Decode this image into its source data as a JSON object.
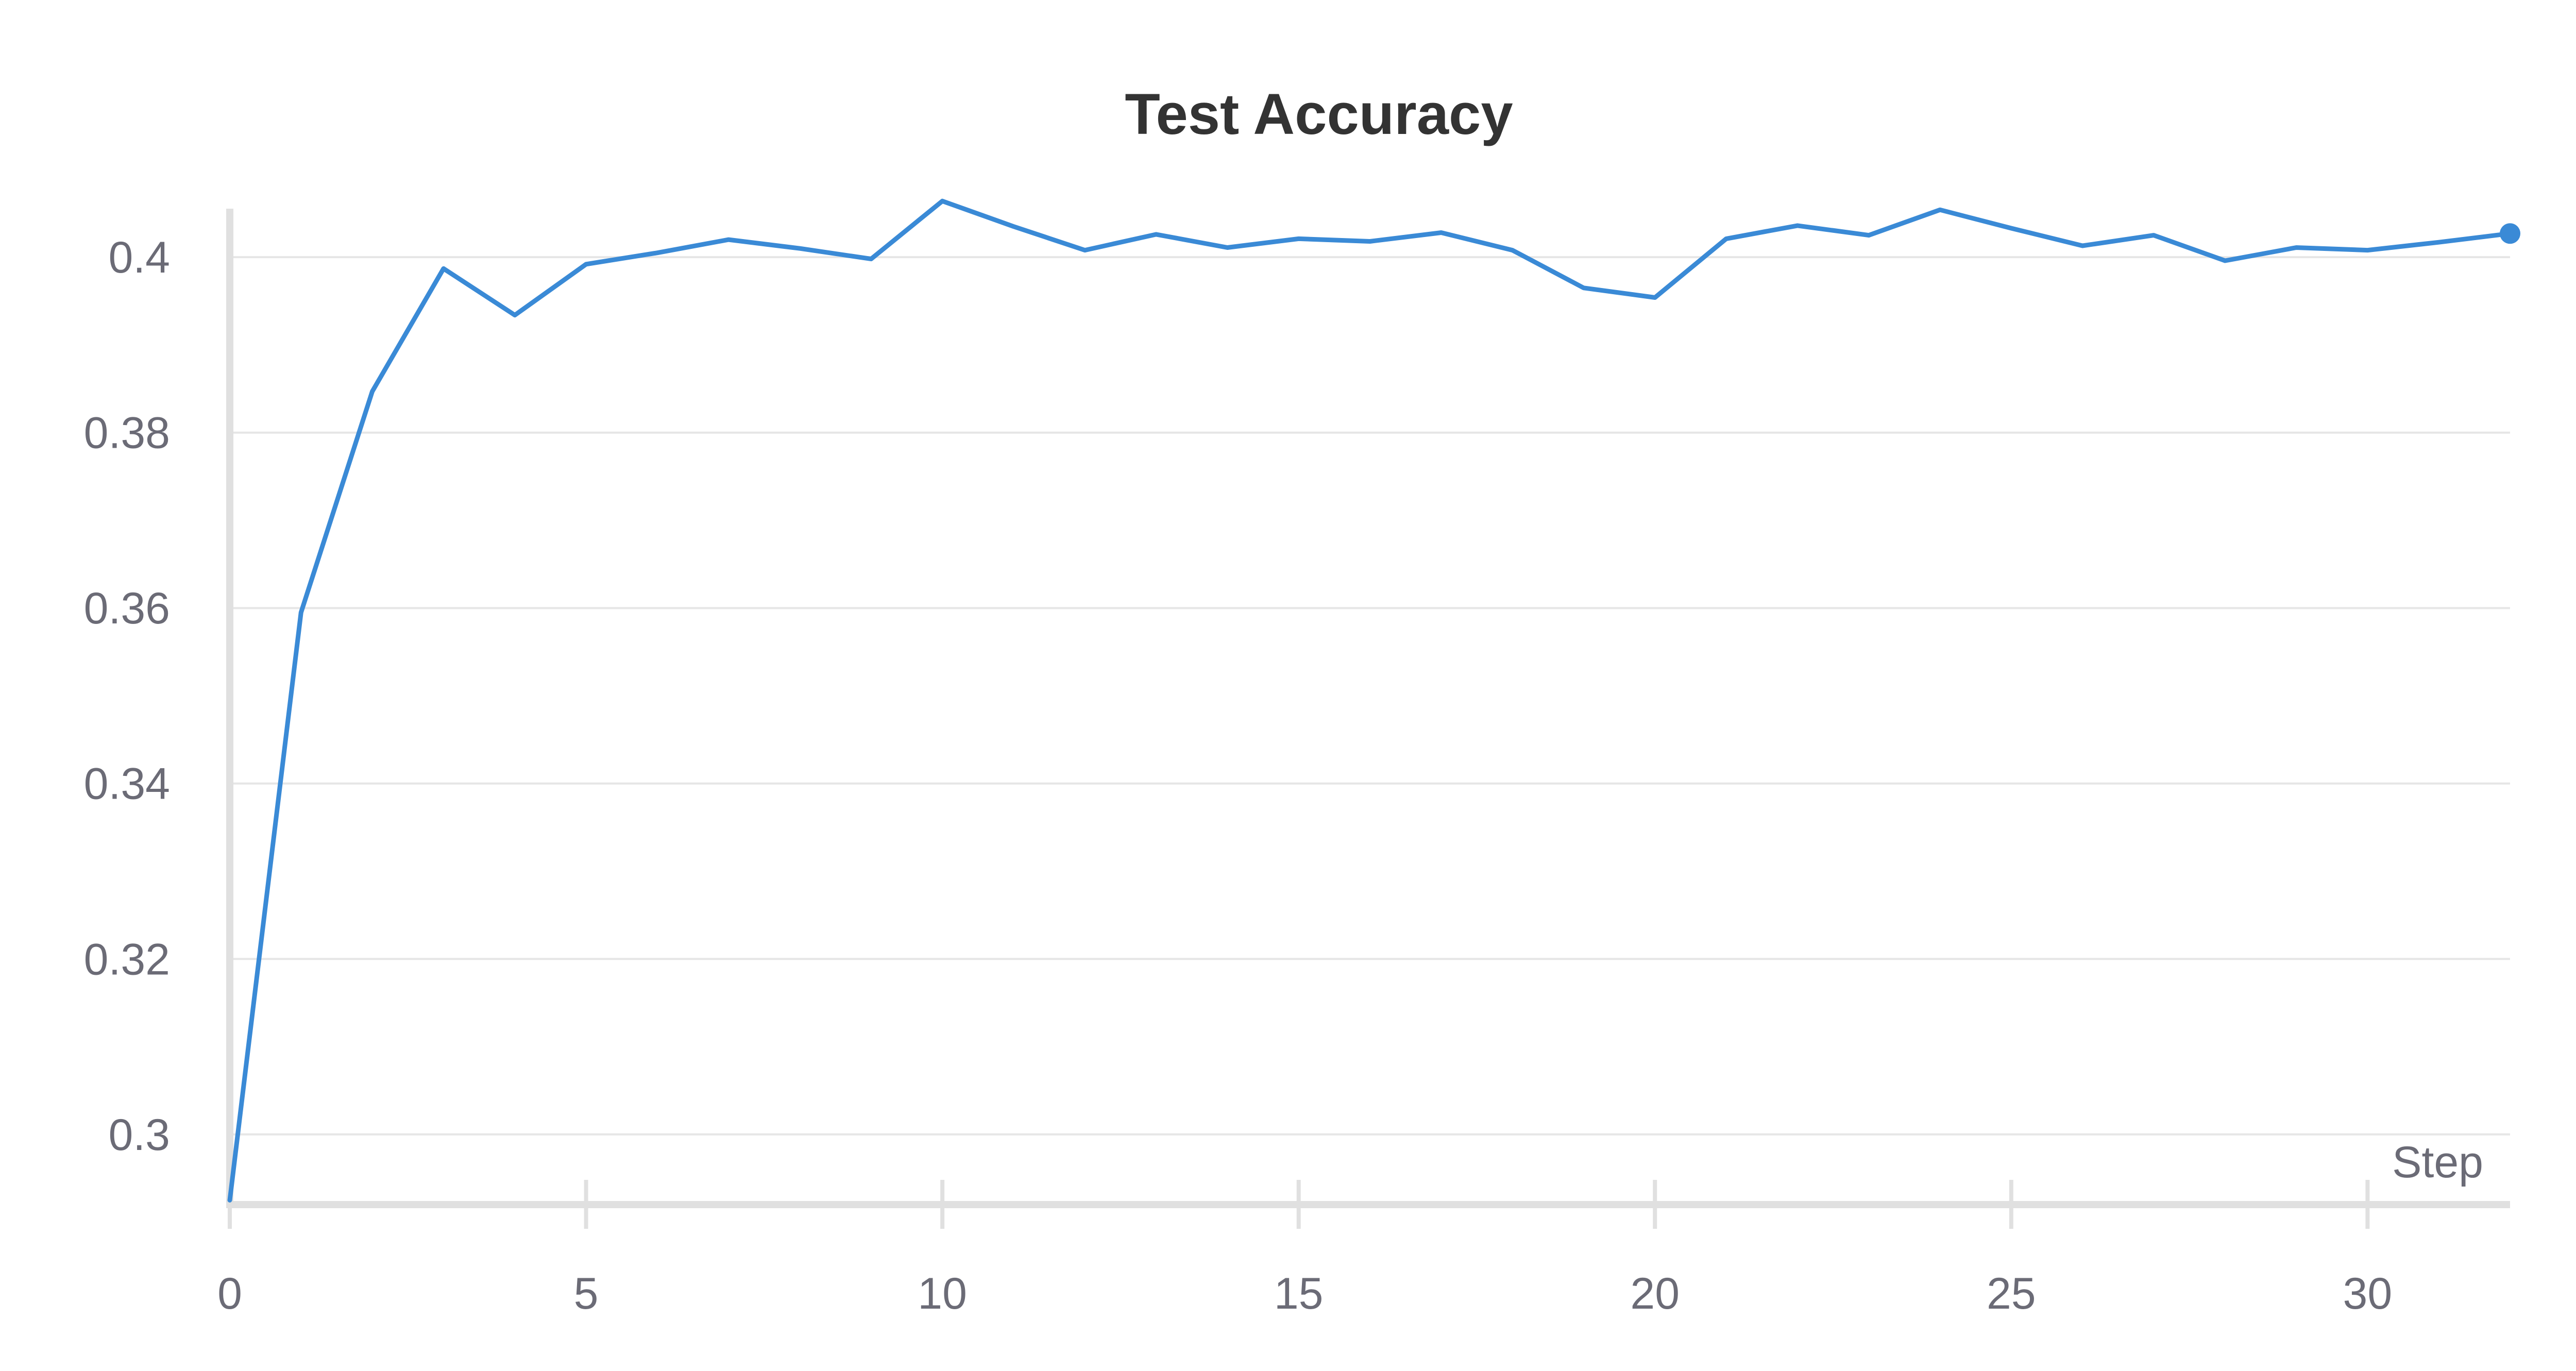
{
  "chart_data": {
    "type": "line",
    "title": "Test Accuracy",
    "xlabel": "Step",
    "ylabel": "",
    "xlim": [
      0,
      32
    ],
    "ylim": [
      0.292,
      0.407
    ],
    "x_ticks": [
      0,
      5,
      10,
      15,
      20,
      25,
      30
    ],
    "y_ticks": [
      0.3,
      0.32,
      0.34,
      0.36,
      0.38,
      0.4
    ],
    "y_tick_labels": [
      "0.3",
      "0.32",
      "0.34",
      "0.36",
      "0.38",
      "0.4"
    ],
    "grid": true,
    "legend": "none",
    "line_color": "#3a8ad6",
    "series": [
      {
        "x": [
          0,
          1,
          2,
          3,
          4,
          5,
          6,
          7,
          8,
          9,
          10,
          11,
          12,
          13,
          14,
          15,
          16,
          17,
          18,
          19,
          20,
          21,
          22,
          23,
          24,
          25,
          26,
          27,
          28,
          29,
          30,
          31,
          32
        ],
        "values": [
          0.2925,
          0.3595,
          0.3847,
          0.3987,
          0.3934,
          0.3992,
          0.4005,
          0.402,
          0.401,
          0.3998,
          0.4064,
          0.4035,
          0.4008,
          0.4026,
          0.4011,
          0.4021,
          0.4018,
          0.4028,
          0.4008,
          0.3965,
          0.3954,
          0.4021,
          0.4036,
          0.4025,
          0.4054,
          0.4033,
          0.4013,
          0.4025,
          0.3996,
          0.4011,
          0.4008,
          0.4017,
          0.4027
        ]
      }
    ]
  }
}
